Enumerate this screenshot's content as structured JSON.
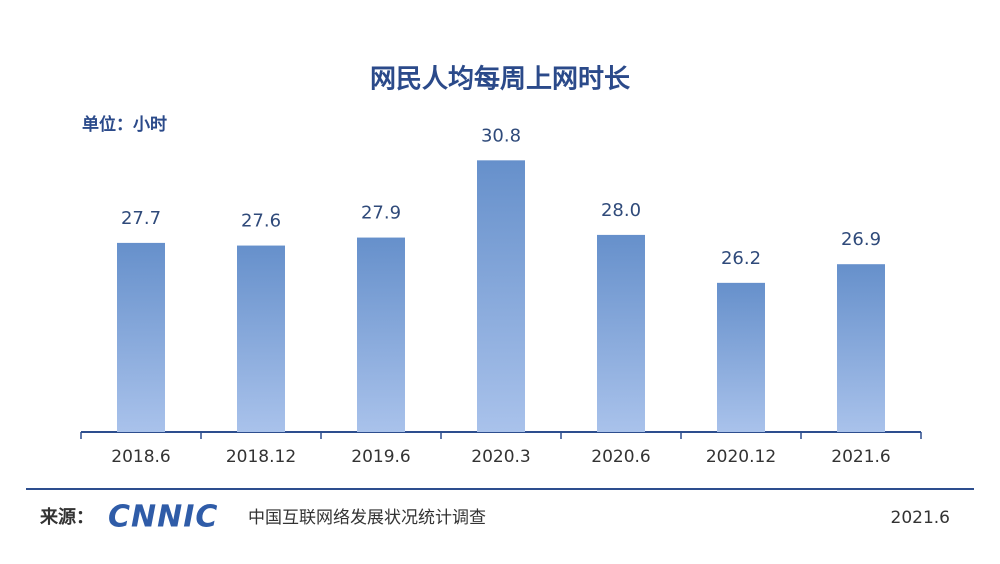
{
  "chart_data": {
    "type": "bar",
    "title": "网民人均每周上网时长",
    "unit_label": "单位：小时",
    "categories": [
      "2018.6",
      "2018.12",
      "2019.6",
      "2020.3",
      "2020.6",
      "2020.12",
      "2021.6"
    ],
    "values": [
      27.7,
      27.6,
      27.9,
      30.8,
      28.0,
      26.2,
      26.9
    ],
    "value_labels": [
      "27.7",
      "27.6",
      "27.9",
      "30.8",
      "28.0",
      "26.2",
      "26.9"
    ],
    "color": "#6f98cf",
    "ylim": [
      20.6,
      31
    ]
  },
  "footer": {
    "source_label": "来源：",
    "logo": "CNNIC",
    "source": "中国互联网络发展状况统计调查",
    "date": "2021.6"
  }
}
